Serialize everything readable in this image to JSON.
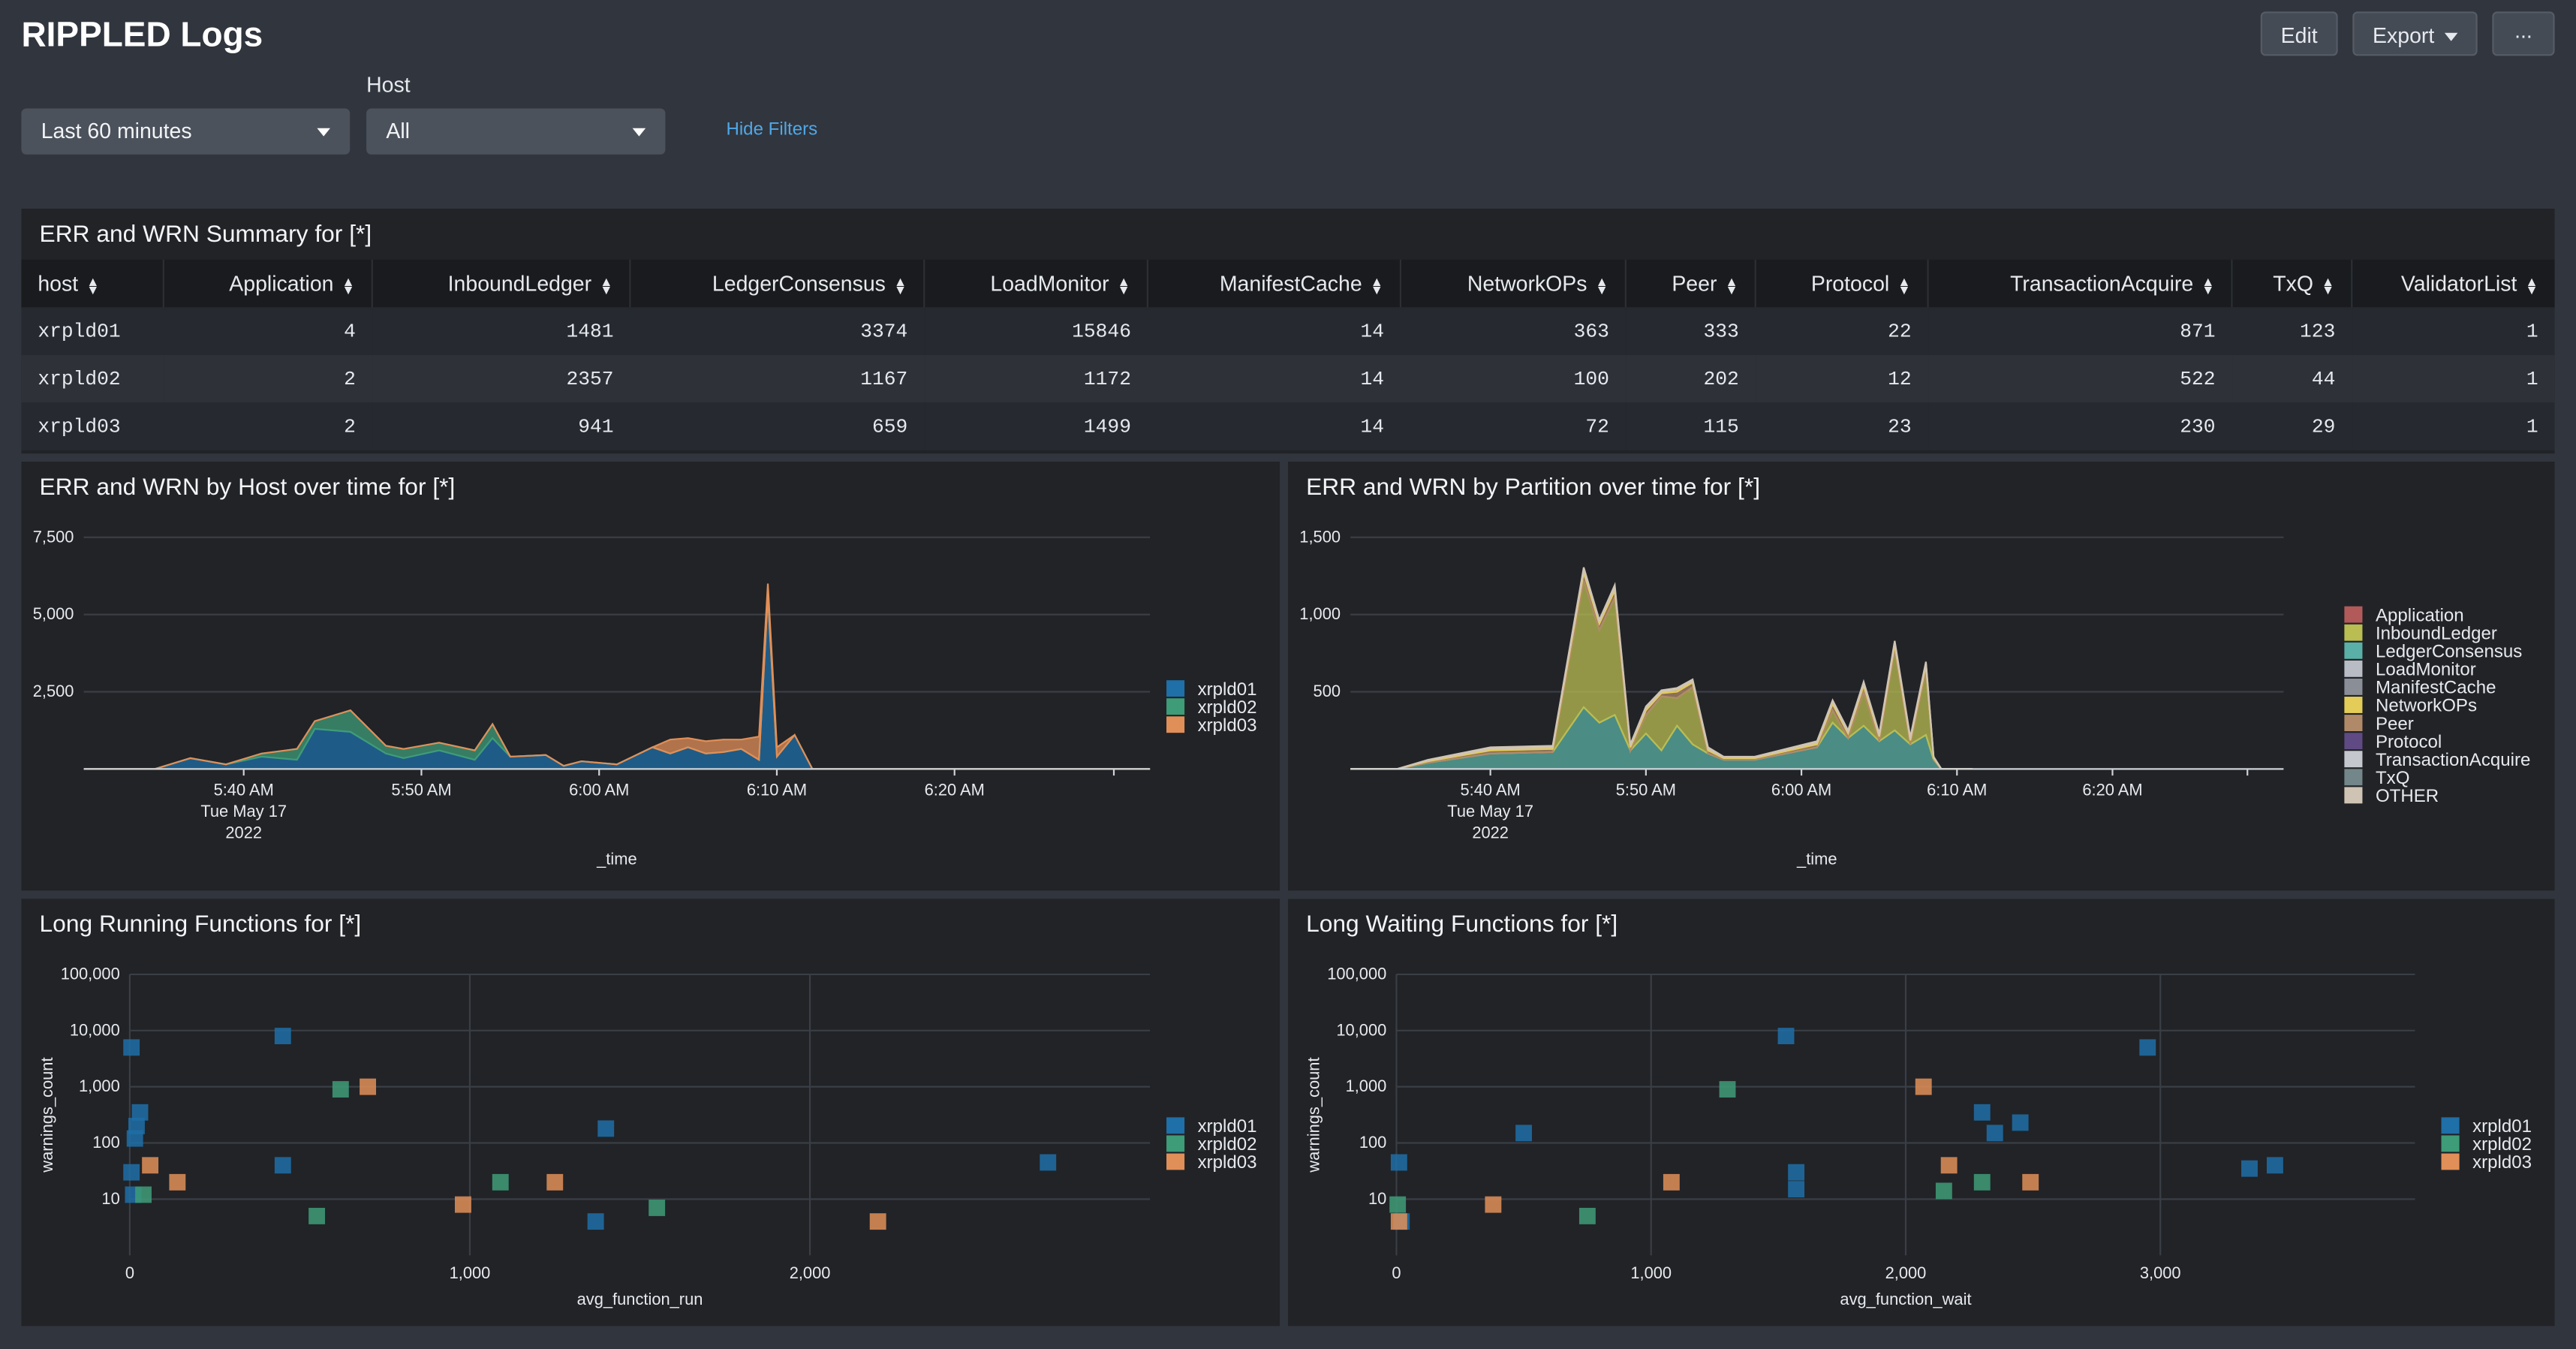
{
  "header": {
    "title": "RIPPLED Logs",
    "edit_label": "Edit",
    "export_label": "Export",
    "more_label": "..."
  },
  "filters": {
    "time_range": "Last 60 minutes",
    "host_label": "Host",
    "host_value": "All",
    "hide_filters_label": "Hide Filters"
  },
  "summary": {
    "title": "ERR and WRN Summary for [*]",
    "columns": [
      "host",
      "Application",
      "InboundLedger",
      "LedgerConsensus",
      "LoadMonitor",
      "ManifestCache",
      "NetworkOPs",
      "Peer",
      "Protocol",
      "TransactionAcquire",
      "TxQ",
      "ValidatorList"
    ],
    "rows": [
      [
        "xrpld01",
        "4",
        "1481",
        "3374",
        "15846",
        "14",
        "363",
        "333",
        "22",
        "871",
        "123",
        "1"
      ],
      [
        "xrpld02",
        "2",
        "2357",
        "1167",
        "1172",
        "14",
        "100",
        "202",
        "12",
        "522",
        "44",
        "1"
      ],
      [
        "xrpld03",
        "2",
        "941",
        "659",
        "1499",
        "14",
        "72",
        "115",
        "23",
        "230",
        "29",
        "1"
      ]
    ]
  },
  "colors": {
    "xrpld01": "#1f6fa8",
    "xrpld02": "#3e9c78",
    "xrpld03": "#e08f58",
    "Application": "#b25a5a",
    "InboundLedger": "#b9bd52",
    "LedgerConsensus": "#5ab0a6",
    "LoadMonitor": "#b8bcc4",
    "ManifestCache": "#8a8e96",
    "NetworkOPs": "#e3cc58",
    "Peer": "#b08a68",
    "Protocol": "#5f4a84",
    "TransactionAcquire": "#c4c8ce",
    "TxQ": "#73868a",
    "OTHER": "#cfc4b4"
  },
  "chart_data": [
    {
      "type": "area",
      "title": "ERR and WRN by Host over time for [*]",
      "xlabel": "_time",
      "ylabel": "",
      "ylim": [
        0,
        7500
      ],
      "yticks": [
        "7,500",
        "5,000",
        "2,500"
      ],
      "x_tick_labels": [
        [
          "5:40 AM",
          "Tue May 17",
          "2022"
        ],
        [
          "5:50 AM"
        ],
        [
          "6:00 AM"
        ],
        [
          "6:10 AM"
        ],
        [
          "6:20 AM"
        ]
      ],
      "x_range_minutes": [
        0,
        60
      ],
      "x_tick_minutes": [
        9,
        19,
        29,
        39,
        49
      ],
      "stacked": true,
      "x": [
        0,
        4,
        6,
        8,
        10,
        12,
        13,
        15,
        17,
        18,
        20,
        22,
        23,
        24,
        26,
        27,
        28,
        30,
        32,
        33,
        34,
        35,
        36,
        37,
        38,
        38.5,
        39,
        40,
        41,
        60
      ],
      "series": [
        {
          "name": "xrpld01",
          "values": [
            0,
            0,
            350,
            150,
            400,
            300,
            1300,
            1200,
            500,
            350,
            600,
            300,
            1000,
            400,
            450,
            100,
            250,
            150,
            700,
            500,
            700,
            500,
            550,
            650,
            300,
            5600,
            400,
            1100,
            0,
            0
          ]
        },
        {
          "name": "xrpld02",
          "values": [
            0,
            0,
            0,
            0,
            100,
            350,
            250,
            700,
            250,
            300,
            250,
            300,
            450,
            0,
            0,
            0,
            0,
            0,
            0,
            0,
            0,
            0,
            0,
            0,
            0,
            0,
            0,
            0,
            0,
            0
          ]
        },
        {
          "name": "xrpld03",
          "values": [
            0,
            0,
            0,
            0,
            0,
            0,
            0,
            0,
            0,
            0,
            0,
            0,
            0,
            0,
            0,
            0,
            0,
            0,
            0,
            450,
            300,
            400,
            400,
            300,
            750,
            400,
            300,
            0,
            0,
            0
          ]
        }
      ],
      "legend": [
        "xrpld01",
        "xrpld02",
        "xrpld03"
      ],
      "legend_position": "right"
    },
    {
      "type": "area",
      "title": "ERR and WRN by Partition over time for [*]",
      "xlabel": "_time",
      "ylabel": "",
      "ylim": [
        0,
        1500
      ],
      "yticks": [
        "1,500",
        "1,000",
        "500"
      ],
      "x_tick_labels": [
        [
          "5:40 AM",
          "Tue May 17",
          "2022"
        ],
        [
          "5:50 AM"
        ],
        [
          "6:00 AM"
        ],
        [
          "6:10 AM"
        ],
        [
          "6:20 AM"
        ]
      ],
      "x_range_minutes": [
        0,
        60
      ],
      "x_tick_minutes": [
        9,
        19,
        29,
        39,
        49
      ],
      "stacked": true,
      "x": [
        0,
        3,
        5,
        9,
        13,
        15,
        16,
        17,
        18,
        19,
        20,
        21,
        22,
        23,
        24,
        26,
        30,
        31,
        32,
        33,
        34,
        35,
        36,
        37,
        37.5,
        38,
        40
      ],
      "series": [
        {
          "name": "LedgerConsensus",
          "values": [
            0,
            0,
            40,
            100,
            110,
            400,
            300,
            350,
            120,
            230,
            120,
            280,
            160,
            100,
            60,
            60,
            140,
            300,
            200,
            280,
            180,
            250,
            160,
            220,
            60,
            0,
            0
          ]
        },
        {
          "name": "InboundLedger",
          "values": [
            0,
            0,
            0,
            0,
            0,
            820,
            600,
            760,
            0,
            120,
            350,
            180,
            370,
            0,
            0,
            0,
            0,
            80,
            0,
            220,
            0,
            520,
            0,
            420,
            0,
            0,
            0
          ]
        },
        {
          "name": "Peer",
          "values": [
            0,
            0,
            10,
            20,
            20,
            50,
            40,
            45,
            20,
            30,
            20,
            40,
            30,
            20,
            10,
            10,
            20,
            40,
            30,
            40,
            30,
            35,
            25,
            30,
            10,
            0,
            0
          ]
        },
        {
          "name": "NetworkOPs",
          "values": [
            0,
            0,
            5,
            10,
            10,
            20,
            15,
            20,
            10,
            15,
            10,
            15,
            10,
            10,
            5,
            5,
            10,
            15,
            10,
            15,
            10,
            15,
            10,
            15,
            5,
            0,
            0
          ]
        },
        {
          "name": "OTHER",
          "values": [
            0,
            0,
            5,
            10,
            10,
            15,
            10,
            15,
            10,
            10,
            10,
            10,
            10,
            10,
            5,
            5,
            10,
            10,
            10,
            10,
            10,
            10,
            10,
            10,
            5,
            0,
            0
          ]
        }
      ],
      "legend": [
        "Application",
        "InboundLedger",
        "LedgerConsensus",
        "LoadMonitor",
        "ManifestCache",
        "NetworkOPs",
        "Peer",
        "Protocol",
        "TransactionAcquire",
        "TxQ",
        "OTHER"
      ],
      "legend_position": "right"
    },
    {
      "type": "scatter",
      "title": "Long Running Functions for [*]",
      "xlabel": "avg_function_run",
      "ylabel": "warnings_count",
      "xlim": [
        0,
        3000
      ],
      "xticks": [
        0,
        1000,
        2000
      ],
      "xtick_labels": [
        "0",
        "1,000",
        "2,000"
      ],
      "yscale": "log",
      "ylim": [
        1,
        100000
      ],
      "yticks": [
        10,
        100,
        1000,
        10000,
        100000
      ],
      "ytick_labels": [
        "10",
        "100",
        "1,000",
        "10,000",
        "100,000"
      ],
      "series": [
        {
          "name": "xrpld01",
          "points": [
            [
              5,
              5000
            ],
            [
              450,
              8000
            ],
            [
              30,
              350
            ],
            [
              20,
              200
            ],
            [
              15,
              120
            ],
            [
              5,
              30
            ],
            [
              10,
              12
            ],
            [
              450,
              40
            ],
            [
              1400,
              180
            ],
            [
              1370,
              4
            ],
            [
              2700,
              45
            ]
          ]
        },
        {
          "name": "xrpld02",
          "points": [
            [
              40,
              12
            ],
            [
              620,
              900
            ],
            [
              1090,
              20
            ],
            [
              550,
              5
            ],
            [
              1550,
              7
            ]
          ]
        },
        {
          "name": "xrpld03",
          "points": [
            [
              60,
              40
            ],
            [
              140,
              20
            ],
            [
              700,
              1000
            ],
            [
              980,
              8
            ],
            [
              1250,
              20
            ],
            [
              2200,
              4
            ]
          ]
        }
      ],
      "legend": [
        "xrpld01",
        "xrpld02",
        "xrpld03"
      ],
      "legend_position": "right"
    },
    {
      "type": "scatter",
      "title": "Long Waiting Functions for [*]",
      "xlabel": "avg_function_wait",
      "ylabel": "warnings_count",
      "xlim": [
        0,
        4000
      ],
      "xticks": [
        0,
        1000,
        2000,
        3000
      ],
      "xtick_labels": [
        "0",
        "1,000",
        "2,000",
        "3,000"
      ],
      "yscale": "log",
      "ylim": [
        1,
        100000
      ],
      "yticks": [
        10,
        100,
        1000,
        10000,
        100000
      ],
      "ytick_labels": [
        "10",
        "100",
        "1,000",
        "10,000",
        "100,000"
      ],
      "series": [
        {
          "name": "xrpld01",
          "points": [
            [
              20,
              4
            ],
            [
              10,
              45
            ],
            [
              500,
              150
            ],
            [
              1530,
              8000
            ],
            [
              1570,
              30
            ],
            [
              1570,
              15
            ],
            [
              2300,
              350
            ],
            [
              2350,
              150
            ],
            [
              2450,
              230
            ],
            [
              2950,
              5000
            ],
            [
              3350,
              35
            ],
            [
              3450,
              40
            ]
          ]
        },
        {
          "name": "xrpld02",
          "points": [
            [
              5,
              8
            ],
            [
              750,
              5
            ],
            [
              1300,
              900
            ],
            [
              2150,
              14
            ],
            [
              2300,
              20
            ]
          ]
        },
        {
          "name": "xrpld03",
          "points": [
            [
              10,
              4
            ],
            [
              380,
              8
            ],
            [
              1080,
              20
            ],
            [
              2070,
              1000
            ],
            [
              2170,
              40
            ],
            [
              2490,
              20
            ]
          ]
        }
      ],
      "legend": [
        "xrpld01",
        "xrpld02",
        "xrpld03"
      ],
      "legend_position": "right"
    }
  ]
}
